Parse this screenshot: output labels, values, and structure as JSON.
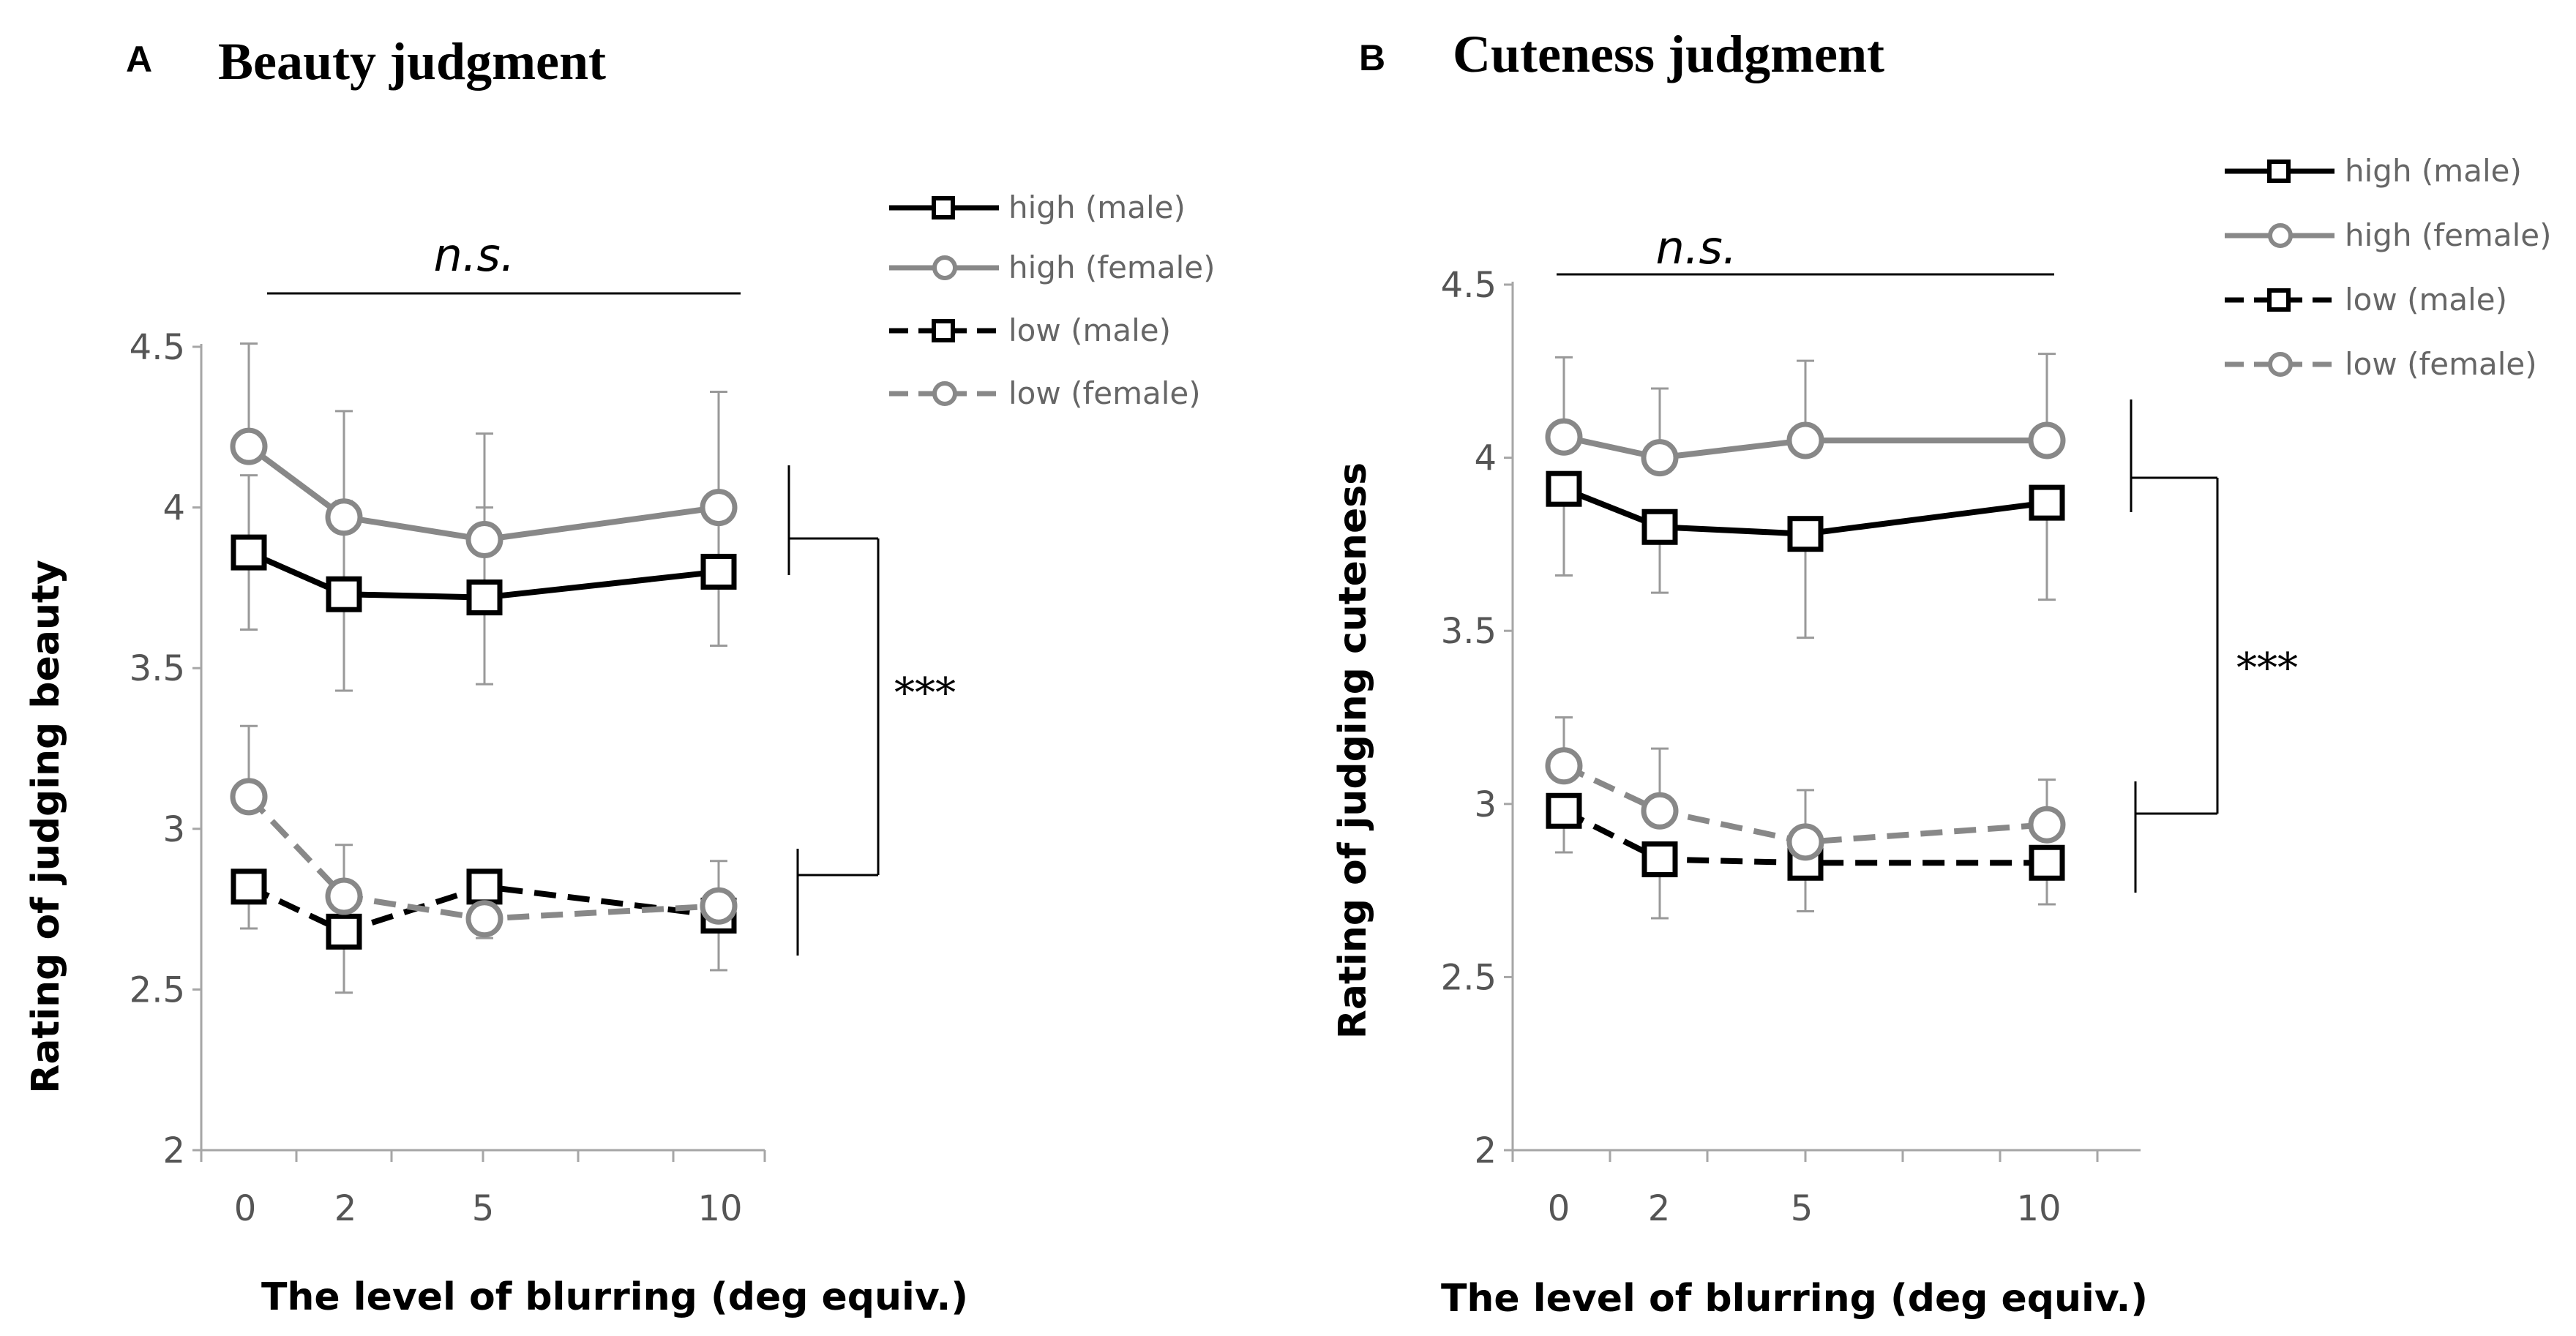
{
  "panels": [
    {
      "letter": "A",
      "title": "Beauty judgment",
      "ylabel": "Rating of judging beauty",
      "xlabel": "The level of blurring (deg equiv.)",
      "ns_label": "n.s.",
      "sig_label": "***"
    },
    {
      "letter": "B",
      "title": "Cuteness judgment",
      "ylabel": "Rating of judging cuteness",
      "xlabel": "The level of blurring (deg equiv.)",
      "ns_label": "n.s.",
      "sig_label": "***"
    }
  ],
  "legend": [
    "high (male)",
    "high (female)",
    "low (male)",
    "low (female)"
  ],
  "colors": {
    "male": "#000000",
    "female": "#888888",
    "axis": "#a6a6a6",
    "errorbar": "#999999"
  },
  "chart_data": [
    {
      "type": "line",
      "title": "Beauty judgment",
      "xlabel": "The level of blurring (deg equiv.)",
      "ylabel": "Rating of judging beauty",
      "categories": [
        "0",
        "2",
        "5",
        "10"
      ],
      "yticks": [
        "2",
        "2.5",
        "3",
        "3.5",
        "4",
        "4.5"
      ],
      "ylim": [
        2,
        4.5
      ],
      "legend_position": "top-right",
      "annotations": [
        "n.s.",
        "***"
      ],
      "series": [
        {
          "name": "high (male)",
          "values": [
            3.86,
            3.73,
            3.72,
            3.8
          ],
          "err_plus": [
            0.24,
            0.29,
            0.28,
            0.24
          ],
          "err_minus": [
            0.24,
            0.3,
            0.27,
            0.23
          ],
          "marker": "square",
          "dashed": false,
          "color": "#000000"
        },
        {
          "name": "high (female)",
          "values": [
            4.19,
            3.97,
            3.9,
            4.0
          ],
          "err_plus": [
            0.32,
            0.33,
            0.33,
            0.36
          ],
          "err_minus": [
            0.0,
            0.0,
            0.0,
            0.0
          ],
          "marker": "circle",
          "dashed": false,
          "color": "#888888"
        },
        {
          "name": "low (male)",
          "values": [
            2.82,
            2.68,
            2.82,
            2.73
          ],
          "err_plus": [
            0.0,
            0.0,
            0.0,
            0.0
          ],
          "err_minus": [
            0.13,
            0.19,
            0.0,
            0.17
          ],
          "marker": "square",
          "dashed": true,
          "color": "#000000"
        },
        {
          "name": "low (female)",
          "values": [
            3.1,
            2.79,
            2.72,
            2.76
          ],
          "err_plus": [
            0.22,
            0.16,
            0.0,
            0.14
          ],
          "err_minus": [
            0.0,
            0.0,
            0.06,
            0.0
          ],
          "marker": "circle",
          "dashed": true,
          "color": "#888888"
        }
      ]
    },
    {
      "type": "line",
      "title": "Cuteness judgment",
      "xlabel": "The level of blurring (deg equiv.)",
      "ylabel": "Rating of judging cuteness",
      "categories": [
        "0",
        "2",
        "5",
        "10"
      ],
      "yticks": [
        "2",
        "2.5",
        "3",
        "3.5",
        "4",
        "4.5"
      ],
      "ylim": [
        2,
        4.5
      ],
      "legend_position": "top-right",
      "annotations": [
        "n.s.",
        "***"
      ],
      "series": [
        {
          "name": "high (male)",
          "values": [
            3.91,
            3.8,
            3.78,
            3.87
          ],
          "err_plus": [
            0.0,
            0.0,
            0.0,
            0.0
          ],
          "err_minus": [
            0.25,
            0.19,
            0.3,
            0.28
          ],
          "marker": "square",
          "dashed": false,
          "color": "#000000"
        },
        {
          "name": "high (female)",
          "values": [
            4.06,
            4.0,
            4.05,
            4.05
          ],
          "err_plus": [
            0.23,
            0.2,
            0.23,
            0.25
          ],
          "err_minus": [
            0.0,
            0.0,
            0.0,
            0.0
          ],
          "marker": "circle",
          "dashed": false,
          "color": "#888888"
        },
        {
          "name": "low (male)",
          "values": [
            2.98,
            2.84,
            2.83,
            2.83
          ],
          "err_plus": [
            0.0,
            0.0,
            0.0,
            0.0
          ],
          "err_minus": [
            0.12,
            0.17,
            0.14,
            0.12
          ],
          "marker": "square",
          "dashed": true,
          "color": "#000000"
        },
        {
          "name": "low (female)",
          "values": [
            3.11,
            2.98,
            2.89,
            2.94
          ],
          "err_plus": [
            0.14,
            0.18,
            0.15,
            0.13
          ],
          "err_minus": [
            0.0,
            0.0,
            0.0,
            0.0
          ],
          "marker": "circle",
          "dashed": true,
          "color": "#888888"
        }
      ]
    }
  ]
}
